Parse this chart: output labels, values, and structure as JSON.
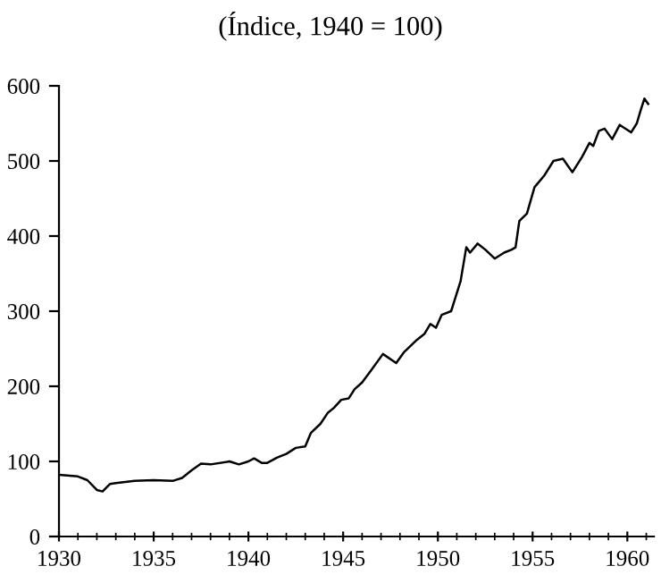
{
  "chart_data": {
    "type": "line",
    "title": "(Índice, 1940 = 100)",
    "x": [
      1930,
      1931,
      1931.5,
      1932,
      1932.3,
      1932.7,
      1933,
      1934,
      1935,
      1936,
      1936.5,
      1937,
      1937.5,
      1938,
      1939,
      1939.5,
      1940,
      1940.3,
      1940.7,
      1941,
      1941.5,
      1942,
      1942.5,
      1943,
      1943.3,
      1943.8,
      1944.2,
      1944.5,
      1944.9,
      1945.3,
      1945.6,
      1946,
      1946.5,
      1947.1,
      1947.8,
      1948.2,
      1948.9,
      1949.3,
      1949.6,
      1949.9,
      1950.2,
      1950.7,
      1951.2,
      1951.5,
      1951.7,
      1952.1,
      1952.5,
      1953,
      1953.5,
      1953.9,
      1954.1,
      1954.3,
      1954.7,
      1955.1,
      1955.6,
      1956.1,
      1956.6,
      1957.1,
      1957.6,
      1958,
      1958.2,
      1958.5,
      1958.8,
      1959.2,
      1959.6,
      1960.2,
      1960.5,
      1960.7,
      1960.9,
      1961.1
    ],
    "series": [
      {
        "color": "#000000",
        "values": [
          82,
          80,
          75,
          62,
          60,
          70,
          71,
          74,
          75,
          74,
          78,
          88,
          97,
          96,
          100,
          96,
          100,
          104,
          98,
          98,
          105,
          110,
          118,
          120,
          138,
          150,
          165,
          171,
          182,
          184,
          196,
          205,
          222,
          243,
          231,
          245,
          262,
          270,
          283,
          278,
          295,
          300,
          340,
          385,
          378,
          390,
          382,
          370,
          378,
          382,
          385,
          420,
          430,
          465,
          480,
          500,
          503,
          485,
          505,
          524,
          520,
          540,
          543,
          529,
          548,
          538,
          550,
          567,
          583,
          576
        ]
      }
    ],
    "xlim": [
      1930,
      1961.4
    ],
    "xticks": [
      1930,
      1935,
      1940,
      1945,
      1950,
      1955,
      1960
    ],
    "ylim": [
      0,
      600
    ],
    "yticks": [
      0,
      100,
      200,
      300,
      400,
      500,
      600
    ],
    "grid": false,
    "legend": false,
    "marker": "none",
    "line_style": "solid"
  }
}
